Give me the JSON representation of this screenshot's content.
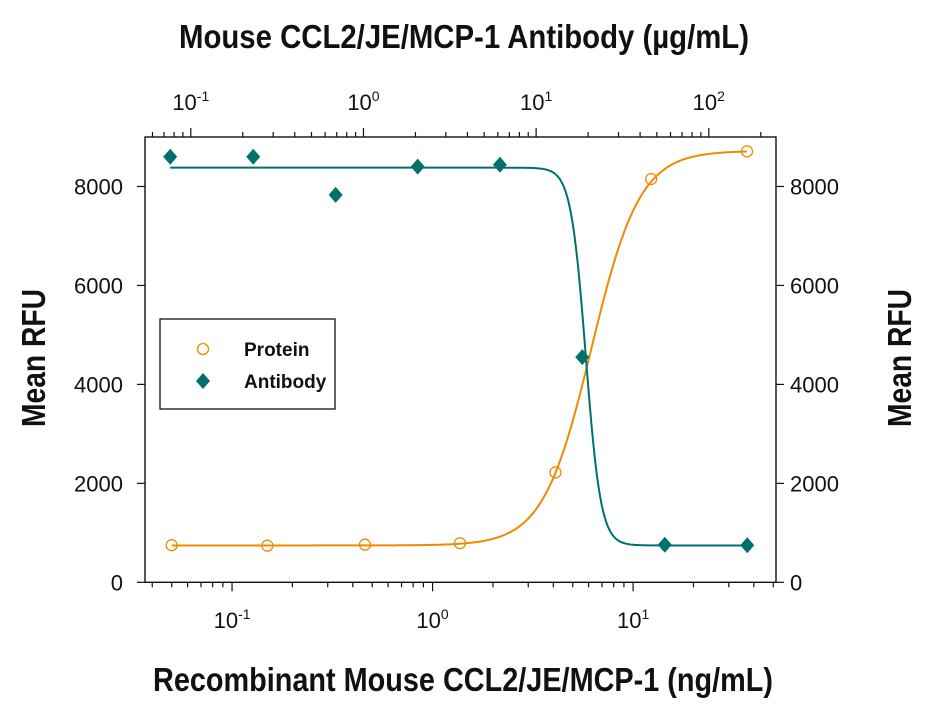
{
  "chart_data": {
    "type": "scatter",
    "title": "",
    "x_bottom": {
      "label": "Recombinant Mouse CCL2/JE/MCP-1 (ng/mL)",
      "scale": "log",
      "range": [
        0.0368,
        51.6
      ],
      "tick_labels": [
        {
          "base": "10",
          "exp": "-1",
          "value": 0.1
        },
        {
          "base": "10",
          "exp": "0",
          "value": 1
        },
        {
          "base": "10",
          "exp": "1",
          "value": 10
        }
      ]
    },
    "x_top": {
      "label": "Mouse CCL2/JE/MCP-1 Antibody (µg/mL)",
      "scale": "log",
      "range": [
        0.0543,
        245
      ],
      "tick_labels": [
        {
          "base": "10",
          "exp": "-1",
          "value": 0.1
        },
        {
          "base": "10",
          "exp": "0",
          "value": 1
        },
        {
          "base": "10",
          "exp": "1",
          "value": 10
        },
        {
          "base": "10",
          "exp": "2",
          "value": 100
        }
      ]
    },
    "y": {
      "label": "Mean RFU",
      "range": [
        0,
        9000
      ],
      "ticks": [
        "0",
        "2000",
        "4000",
        "6000",
        "8000"
      ]
    },
    "y_right": {
      "label": "Mean RFU",
      "ticks": [
        "0",
        "2000",
        "4000",
        "6000",
        "8000"
      ]
    },
    "grid": false,
    "legend": {
      "placement": "center-left"
    },
    "series": [
      {
        "name": "Protein",
        "axis": "bottom",
        "marker": "open-circle",
        "color": "#f08a00",
        "x": [
          0.05,
          0.15,
          0.46,
          1.37,
          4.1,
          12.3,
          37
        ],
        "y": [
          750,
          740,
          760,
          790,
          2220,
          8150,
          8710
        ],
        "fit": {
          "bottom": 745,
          "top": 8720,
          "ec50": 6.2,
          "hill": 3.6
        }
      },
      {
        "name": "Antibody",
        "axis": "top",
        "marker": "filled-diamond",
        "color": "#00716a",
        "x": [
          0.076,
          0.23,
          0.69,
          2.06,
          6.17,
          18.5,
          55.6,
          167
        ],
        "y": [
          8600,
          8600,
          7830,
          8400,
          8440,
          4550,
          760,
          750
        ],
        "fit": {
          "bottom": 745,
          "top": 8380,
          "ec50": 19.4,
          "hill": -10
        }
      }
    ]
  }
}
